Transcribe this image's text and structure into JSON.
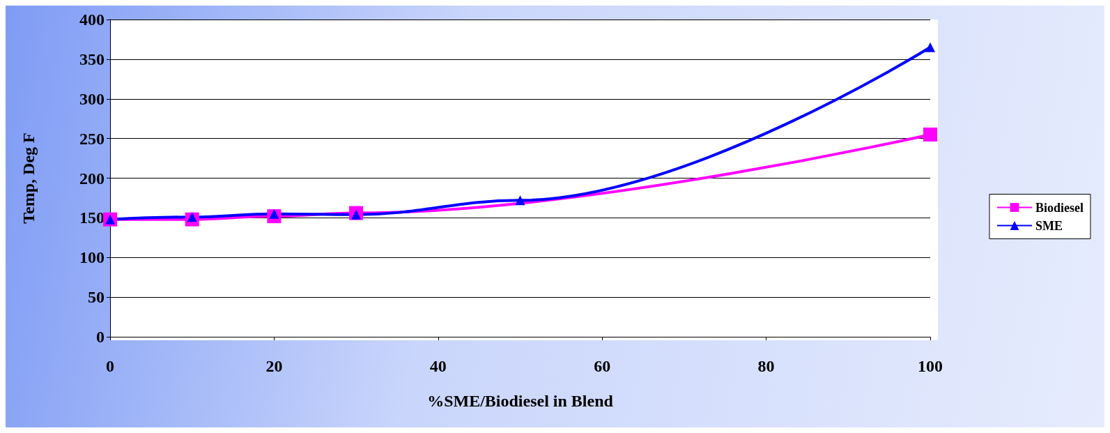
{
  "chart_data": {
    "type": "line",
    "xlabel": "%SME/Biodiesel in Blend",
    "ylabel": "Temp, Deg F",
    "xlim": [
      0,
      100
    ],
    "xticks": [
      0,
      20,
      40,
      60,
      80,
      100
    ],
    "ylim": [
      0,
      400
    ],
    "yticks": [
      0,
      50,
      100,
      150,
      200,
      250,
      300,
      350,
      400
    ],
    "grid": "y",
    "legend": "right",
    "series": [
      {
        "name": "Biodiesel",
        "color": "#ff00ff",
        "marker": "square",
        "x": [
          0,
          10,
          20,
          30,
          100
        ],
        "values": [
          148,
          148,
          152,
          156,
          255
        ]
      },
      {
        "name": "SME",
        "color": "#0000ff",
        "marker": "triangle",
        "x": [
          0,
          10,
          20,
          30,
          50,
          100
        ],
        "values": [
          148,
          151,
          155,
          154,
          172,
          365
        ]
      }
    ]
  }
}
